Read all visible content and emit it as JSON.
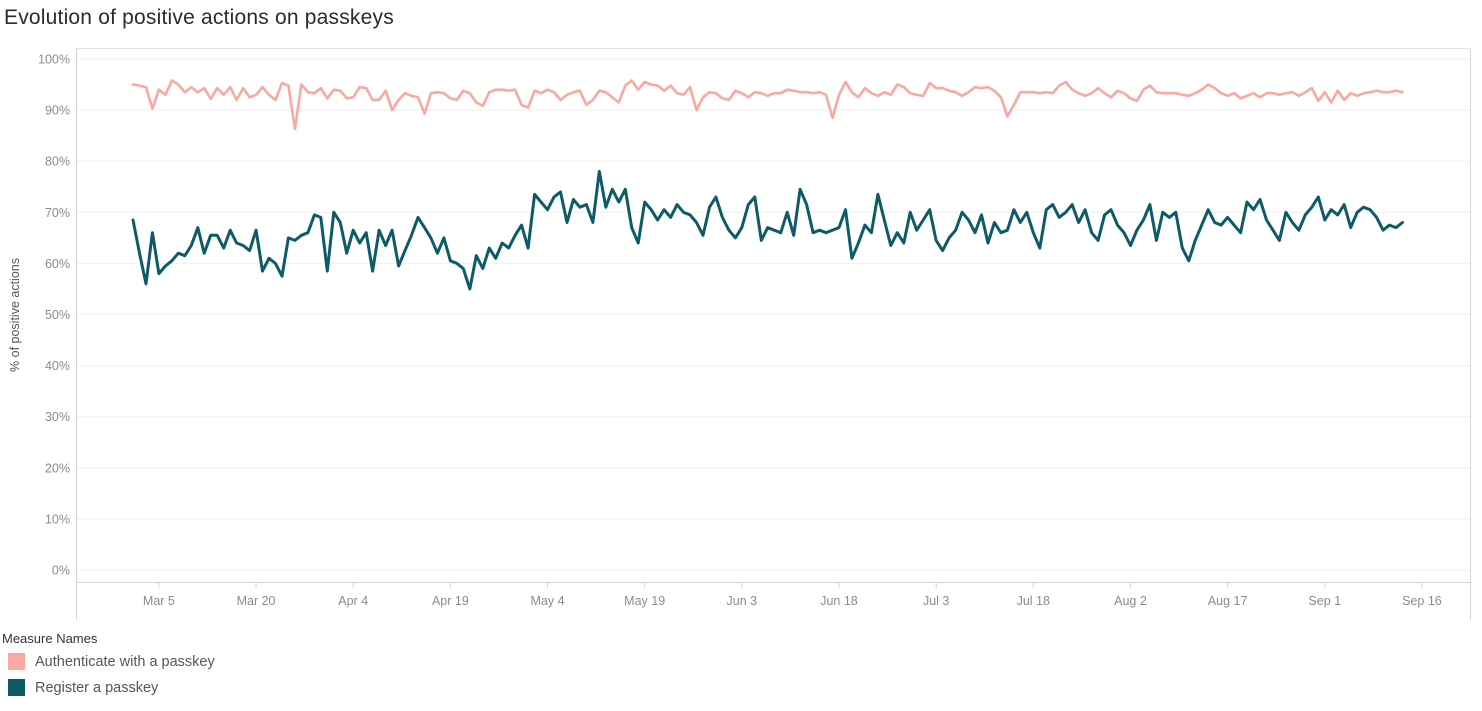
{
  "page_title": "Evolution of positive actions on passkeys",
  "chart_data": {
    "type": "line",
    "title": "Evolution of positive actions on passkeys",
    "xlabel": "",
    "ylabel": "% of positive actions",
    "ylim": [
      0,
      100
    ],
    "grid": true,
    "x_unit": "day",
    "x_start_label": "Mar 1",
    "x_end_label": "Sep 14",
    "y_ticks": [
      "0%",
      "10%",
      "20%",
      "30%",
      "40%",
      "50%",
      "60%",
      "70%",
      "80%",
      "90%",
      "100%"
    ],
    "x_ticks": [
      {
        "label": "Mar 5",
        "day": 4
      },
      {
        "label": "Mar 20",
        "day": 19
      },
      {
        "label": "Apr 4",
        "day": 34
      },
      {
        "label": "Apr 19",
        "day": 49
      },
      {
        "label": "May 4",
        "day": 64
      },
      {
        "label": "May 19",
        "day": 79
      },
      {
        "label": "Jun 3",
        "day": 94
      },
      {
        "label": "Jun 18",
        "day": 109
      },
      {
        "label": "Jul 3",
        "day": 124
      },
      {
        "label": "Jul 18",
        "day": 139
      },
      {
        "label": "Aug 2",
        "day": 154
      },
      {
        "label": "Aug 17",
        "day": 169
      },
      {
        "label": "Sep 1",
        "day": 184
      },
      {
        "label": "Sep 16",
        "day": 199
      }
    ],
    "legend": {
      "title": "Measure Names",
      "position": "bottom-left"
    },
    "series": [
      {
        "name": "Authenticate with a passkey",
        "color": "#F9A8A2",
        "stroke_width": 2.6,
        "values": [
          95,
          94.8,
          94.5,
          90.3,
          94,
          93,
          95.8,
          95,
          93.5,
          94.5,
          93.5,
          94.3,
          92.2,
          94.3,
          93,
          94.5,
          92,
          94.3,
          92.5,
          93,
          94.5,
          93,
          92,
          95.3,
          94.8,
          86.3,
          95,
          93.5,
          93.3,
          94.3,
          92.3,
          94,
          93.8,
          92.3,
          92.5,
          94.5,
          94.3,
          92,
          92,
          93.8,
          90,
          92,
          93.3,
          92.8,
          92.5,
          89.3,
          93.3,
          93.5,
          93.3,
          92.3,
          92,
          93.8,
          93.3,
          91.5,
          90.8,
          93.5,
          94,
          94,
          93.8,
          94,
          91,
          90.5,
          93.8,
          93.3,
          94,
          93.5,
          92,
          93,
          93.5,
          93.8,
          91,
          92,
          93.8,
          93.5,
          92.5,
          91.5,
          94.8,
          95.8,
          94,
          95.5,
          95,
          94.8,
          93.8,
          94.8,
          93.3,
          93,
          94.5,
          90,
          92.5,
          93.5,
          93.3,
          92.3,
          92,
          93.8,
          93.3,
          92.5,
          93.5,
          93.3,
          92.8,
          93.3,
          93.3,
          94,
          93.8,
          93.5,
          93.5,
          93.3,
          93.5,
          93,
          88.5,
          93,
          95.5,
          93.5,
          92.5,
          94.3,
          93.3,
          92.8,
          93.5,
          93,
          95,
          94.5,
          93.3,
          93,
          92.8,
          95.3,
          94.3,
          94.3,
          93.8,
          93.5,
          92.8,
          93.5,
          94.5,
          94.3,
          94.5,
          93.8,
          92.5,
          88.8,
          91,
          93.5,
          93.5,
          93.5,
          93.3,
          93.5,
          93.3,
          94.8,
          95.5,
          94,
          93.3,
          92.8,
          93.3,
          94.3,
          93.3,
          92.5,
          93.8,
          93.3,
          92.3,
          91.8,
          94,
          94.8,
          93.5,
          93.3,
          93.3,
          93.3,
          93,
          92.8,
          93.3,
          94,
          95,
          94.3,
          93.3,
          92.8,
          93.3,
          92.3,
          92.8,
          93.3,
          92.5,
          93.3,
          93.3,
          93,
          93.3,
          93.5,
          92.8,
          93.5,
          94.3,
          91.8,
          93.5,
          91.5,
          93.8,
          92,
          93.3,
          92.8,
          93.3,
          93.5,
          93.8,
          93.5,
          93.5,
          93.8,
          93.5
        ]
      },
      {
        "name": "Register a passkey",
        "color": "#0E5B68",
        "stroke_width": 3,
        "values": [
          68.5,
          62,
          56,
          66,
          58,
          59.5,
          60.5,
          62,
          61.5,
          63.5,
          67,
          62,
          65.5,
          65.5,
          63,
          66.5,
          64,
          63.5,
          62.5,
          66.5,
          58.5,
          61,
          60,
          57.5,
          65,
          64.5,
          65.5,
          66,
          69.5,
          69,
          58.5,
          70,
          68,
          62,
          66.5,
          64,
          66,
          58.5,
          66.5,
          63.5,
          66.5,
          59.5,
          62.5,
          65.5,
          69,
          67,
          65,
          62,
          65,
          60.5,
          60,
          59,
          55,
          61.5,
          59,
          63,
          61,
          64,
          63,
          65.5,
          67.5,
          63,
          73.5,
          72,
          70.5,
          73,
          74,
          68,
          72.5,
          71,
          71.5,
          68,
          78,
          71,
          74.5,
          72,
          74.5,
          67,
          64,
          72,
          70.5,
          68.5,
          70.5,
          69,
          71.5,
          70,
          69.5,
          68,
          65.5,
          71,
          73,
          69,
          66.5,
          65,
          67,
          71.5,
          73,
          64.5,
          67,
          66.5,
          66,
          70,
          65.5,
          74.5,
          71.5,
          66,
          66.5,
          66,
          66.5,
          67,
          70.5,
          61,
          64,
          67.5,
          66,
          73.5,
          68.5,
          63.5,
          66,
          64,
          70,
          66.5,
          68.5,
          70.5,
          64.5,
          62.5,
          65,
          66.5,
          70,
          68.5,
          66,
          69.5,
          64,
          68,
          66,
          66.5,
          70.5,
          68,
          70,
          66,
          63,
          70.5,
          71.5,
          69,
          70,
          71.5,
          68,
          70.5,
          66,
          64.5,
          69.5,
          70.5,
          67.5,
          66,
          63.5,
          66.5,
          68.5,
          71.5,
          64.5,
          70,
          69,
          70,
          63,
          60.5,
          64.5,
          67.5,
          70.5,
          68,
          67.5,
          69,
          67.5,
          66,
          72,
          70.5,
          72.5,
          68.5,
          66.5,
          64.5,
          70,
          68,
          66.5,
          69.5,
          71,
          73,
          68.5,
          70.5,
          69.5,
          71.5,
          67,
          70,
          71,
          70.5,
          69,
          66.5,
          67.5,
          67,
          68
        ]
      }
    ],
    "colors": {
      "gridline": "#EFEFEF",
      "axis_line": "#D4D4D4",
      "tick_label": "#8B8B8B",
      "axis_title": "#555555",
      "title_text": "#2B2B2B"
    }
  }
}
